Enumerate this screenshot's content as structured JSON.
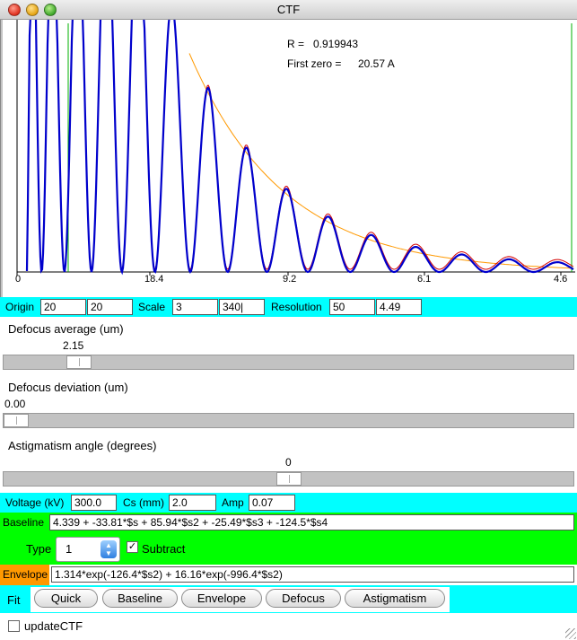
{
  "window": {
    "title": "CTF"
  },
  "plot": {
    "r_label": "R =",
    "r_value": "0.919943",
    "first_zero_label": "First zero =",
    "first_zero_value": "20.57 A",
    "x_ticks": [
      "0",
      "18.4",
      "9.2",
      "6.1",
      "4.6"
    ],
    "colors": {
      "fit": "#d40000",
      "data": "#0000cc",
      "envelope": "#ff9900",
      "marker": "#00b000"
    }
  },
  "origin_row": {
    "origin_label": "Origin",
    "origin_x": "20",
    "origin_y": "20",
    "scale_label": "Scale",
    "scale_1": "3",
    "scale_2": "340|",
    "resolution_label": "Resolution",
    "resolution_1": "50",
    "resolution_2": "4.49"
  },
  "defocus_average": {
    "label": "Defocus average (um)",
    "value": "2.15",
    "fraction": 0.115
  },
  "defocus_deviation": {
    "label": "Defocus deviation (um)",
    "value": "0.00",
    "fraction": 0.0
  },
  "astigmatism_angle": {
    "label": "Astigmatism angle (degrees)",
    "value": "0",
    "fraction": 0.5
  },
  "voltage_row": {
    "voltage_label": "Voltage (kV)",
    "voltage_value": "300.0",
    "cs_label": "Cs (mm)",
    "cs_value": "2.0",
    "amp_label": "Amp",
    "amp_value": "0.07"
  },
  "baseline": {
    "label": "Baseline",
    "expression": "4.339 + -33.81*$s + 85.94*$s2 + -25.49*$s3 + -124.5*$s4",
    "type_label": "Type",
    "type_value": "1",
    "subtract_label": "Subtract",
    "subtract_checked": "✓"
  },
  "envelope": {
    "label": "Envelope",
    "expression": "1.314*exp(-126.4*$s2) + 16.16*exp(-996.4*$s2)"
  },
  "fit": {
    "label": "Fit",
    "buttons": [
      "Quick",
      "Baseline",
      "Envelope",
      "Defocus",
      "Astigmatism"
    ]
  },
  "update_ctf": {
    "label": "updateCTF"
  }
}
